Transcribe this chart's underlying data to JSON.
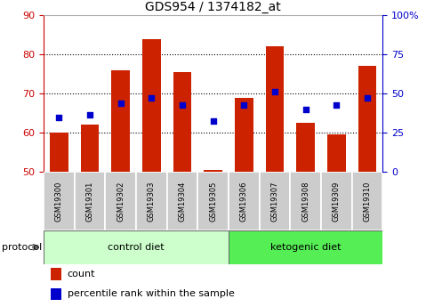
{
  "title": "GDS954 / 1374182_at",
  "samples": [
    "GSM19300",
    "GSM19301",
    "GSM19302",
    "GSM19303",
    "GSM19304",
    "GSM19305",
    "GSM19306",
    "GSM19307",
    "GSM19308",
    "GSM19309",
    "GSM19310"
  ],
  "bar_values": [
    60.0,
    62.0,
    76.0,
    84.0,
    75.5,
    50.5,
    69.0,
    82.0,
    62.5,
    59.5,
    77.0
  ],
  "percentile_values": [
    64.0,
    64.5,
    67.5,
    69.0,
    67.0,
    63.0,
    67.0,
    70.5,
    66.0,
    67.0,
    69.0
  ],
  "bar_bottom": 50,
  "ylim": [
    50,
    90
  ],
  "y_ticks": [
    50,
    60,
    70,
    80,
    90
  ],
  "right_yticklabels": [
    "0",
    "25",
    "50",
    "75",
    "100%"
  ],
  "bar_color": "#cc2200",
  "percentile_color": "#0000cc",
  "bar_width": 0.6,
  "ctrl_n": 6,
  "ket_n": 5,
  "control_label": "control diet",
  "ketogenic_label": "ketogenic diet",
  "protocol_label": "protocol",
  "control_bg": "#ccffcc",
  "ketogenic_bg": "#55ee55",
  "sample_bg": "#cccccc",
  "legend_count": "count",
  "legend_percentile": "percentile rank within the sample",
  "left_tick_color": "#cc0000",
  "right_tick_color": "#0000cc",
  "title_fontsize": 10,
  "tick_fontsize": 8,
  "sample_fontsize": 6,
  "protocol_fontsize": 8,
  "legend_fontsize": 8
}
